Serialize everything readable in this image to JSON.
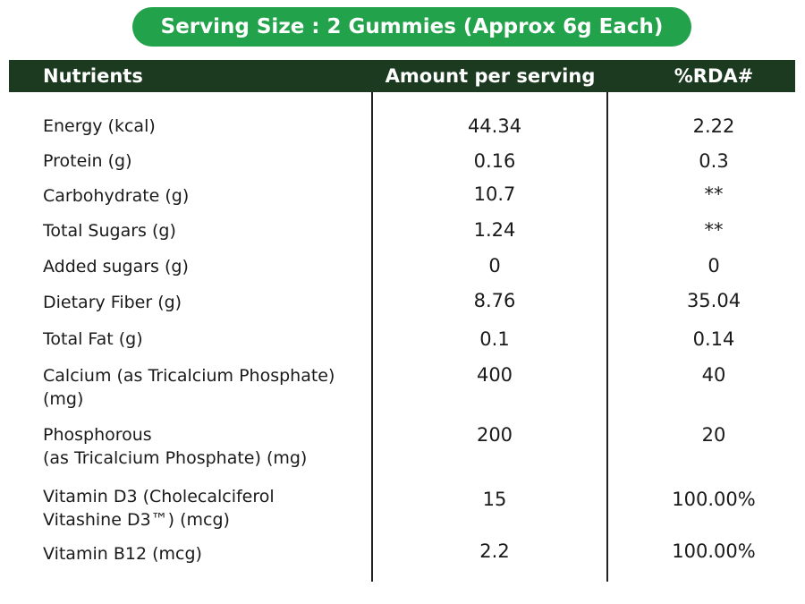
{
  "header": {
    "title": "Serving Size : 2 Gummies (Approx 6g Each)"
  },
  "table": {
    "columns": [
      "Nutrients",
      "Amount per serving",
      "%RDA#"
    ],
    "rows": [
      {
        "nutrient": [
          "Energy (kcal)"
        ],
        "amount": "44.34",
        "rda": "2.22"
      },
      {
        "nutrient": [
          "Protein (g)"
        ],
        "amount": "0.16",
        "rda": "0.3"
      },
      {
        "nutrient": [
          "Carbohydrate (g)"
        ],
        "amount": "10.7",
        "rda": "**"
      },
      {
        "nutrient": [
          "Total Sugars (g)"
        ],
        "amount": "1.24",
        "rda": "**"
      },
      {
        "nutrient": [
          "Added sugars (g)"
        ],
        "amount": "0",
        "rda": "0"
      },
      {
        "nutrient": [
          "Dietary Fiber (g)"
        ],
        "amount": "8.76",
        "rda": "35.04"
      },
      {
        "nutrient": [
          "Total Fat (g)"
        ],
        "amount": "0.1",
        "rda": "0.14"
      },
      {
        "nutrient": [
          "Calcium (as Tricalcium Phosphate)",
          "(mg)"
        ],
        "amount": "400",
        "rda": "40"
      },
      {
        "nutrient": [
          "Phosphorous",
          "(as Tricalcium Phosphate) (mg)"
        ],
        "amount": "200",
        "rda": "20"
      },
      {
        "nutrient": [
          "Vitamin D3 (Cholecalciferol",
          "Vitashine D3™) (mcg)"
        ],
        "amount": "15",
        "rda": "100.00%"
      },
      {
        "nutrient": [
          "Vitamin B12 (mcg)"
        ],
        "amount": "2.2",
        "rda": "100.00%"
      }
    ]
  }
}
